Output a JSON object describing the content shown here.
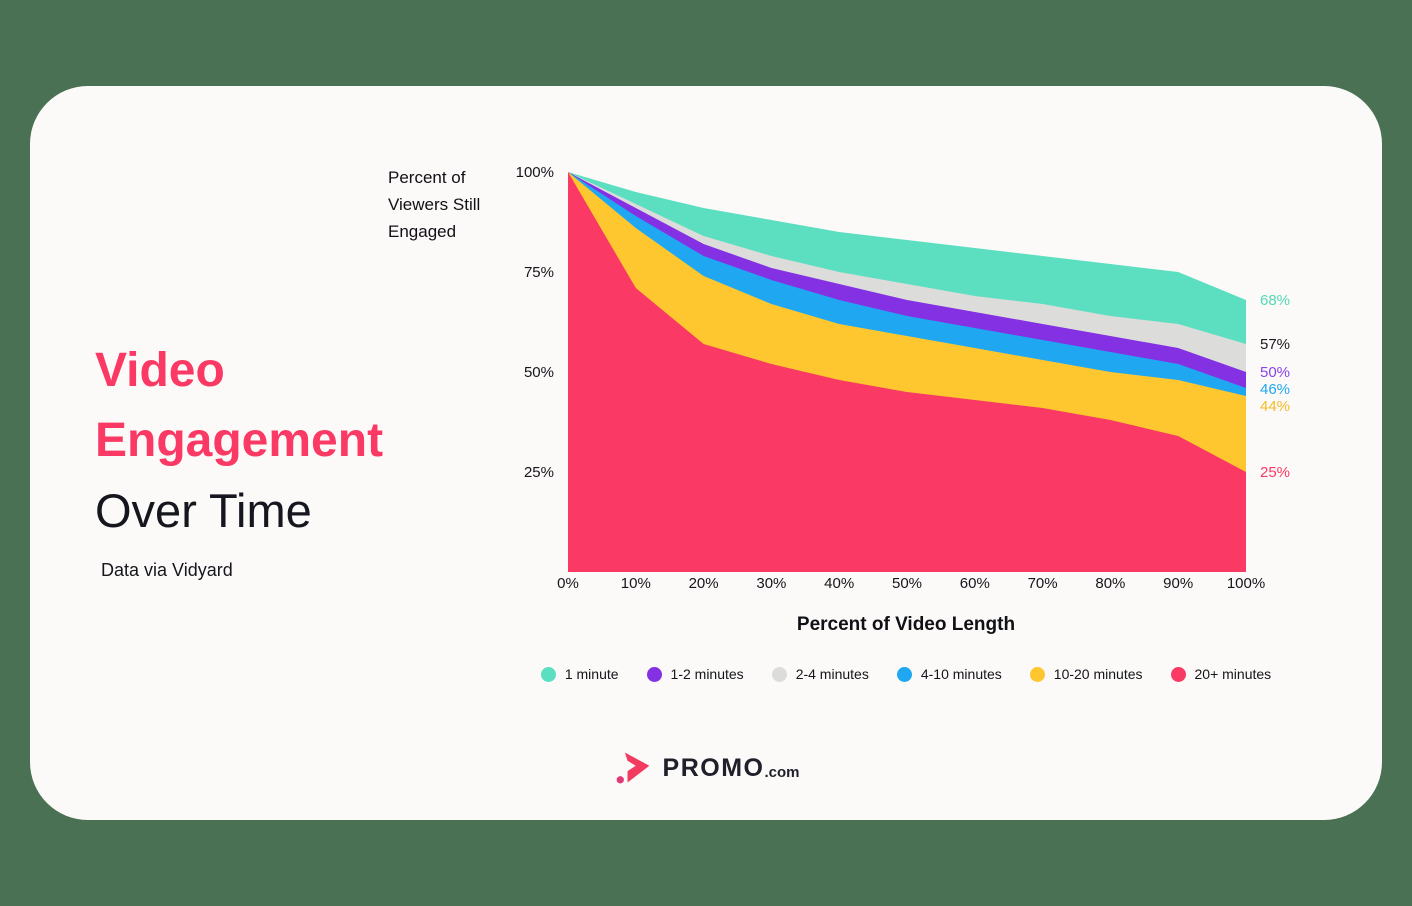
{
  "page": {
    "background_color": "#4A7154",
    "card_color": "#FBFAF8"
  },
  "headline": {
    "accent_lines": [
      "Video",
      "Engagement"
    ],
    "plain_line": "Over Time",
    "source": "Data via Vidyard",
    "accent_color": "#FA3A64",
    "text_color": "#16161E"
  },
  "chart_data": {
    "type": "area",
    "title": "Video Engagement Over Time",
    "xlabel": "Percent of Video Length",
    "ylabel": "Percent of Viewers Still Engaged",
    "x": [
      0,
      10,
      20,
      30,
      40,
      50,
      60,
      70,
      80,
      90,
      100
    ],
    "x_tick_labels": [
      "0%",
      "10%",
      "20%",
      "30%",
      "40%",
      "50%",
      "60%",
      "70%",
      "80%",
      "90%",
      "100%"
    ],
    "y_ticks": [
      25,
      50,
      75,
      100
    ],
    "y_tick_labels": [
      "25%",
      "50%",
      "75%",
      "100%"
    ],
    "ylim": [
      0,
      100
    ],
    "grid": false,
    "legend_position": "bottom",
    "series": [
      {
        "name": "1 minute",
        "color": "#5CDFC0",
        "end_label": "68%",
        "end_label_color": "#53D9B7",
        "values": [
          100,
          95,
          91,
          88,
          85,
          83,
          81,
          79,
          77,
          75,
          68
        ]
      },
      {
        "name": "2-4 minutes",
        "color": "#DCDCDA",
        "end_label": "57%",
        "end_label_color": "#1B1B22",
        "values": [
          100,
          92,
          84,
          79,
          75,
          72,
          69,
          67,
          64,
          62,
          57
        ]
      },
      {
        "name": "1-2 minutes",
        "color": "#8331E3",
        "end_label": "50%",
        "end_label_color": "#8A43E6",
        "values": [
          100,
          91,
          82,
          76,
          72,
          68,
          65,
          62,
          59,
          56,
          50
        ]
      },
      {
        "name": "4-10 minutes",
        "color": "#1FA8F1",
        "end_label": "46%",
        "end_label_color": "#1FA8F1",
        "values": [
          100,
          89,
          79,
          73,
          68,
          64,
          61,
          58,
          55,
          52,
          46
        ]
      },
      {
        "name": "10-20 minutes",
        "color": "#FEC72F",
        "end_label": "44%",
        "end_label_color": "#F3BB25",
        "values": [
          100,
          86,
          74,
          67,
          62,
          59,
          56,
          53,
          50,
          48,
          44
        ]
      },
      {
        "name": "20+ minutes",
        "color": "#FA3A64",
        "end_label": "25%",
        "end_label_color": "#FA3A64",
        "values": [
          100,
          71,
          57,
          52,
          48,
          45,
          43,
          41,
          38,
          34,
          25
        ]
      }
    ],
    "legend_order": [
      "1 minute",
      "1-2 minutes",
      "2-4 minutes",
      "4-10 minutes",
      "10-20 minutes",
      "20+ minutes"
    ]
  },
  "logo": {
    "brand": "PROMO",
    "tld": ".com",
    "icon_color": "#F23B5F",
    "icon_dot_color": "#E23A74"
  }
}
